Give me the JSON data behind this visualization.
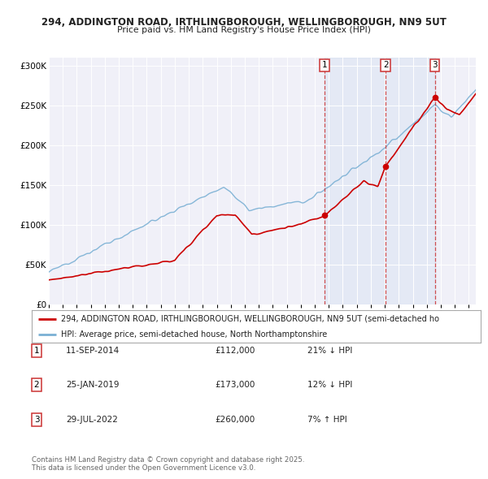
{
  "title_line1": "294, ADDINGTON ROAD, IRTHLINGBOROUGH, WELLINGBOROUGH, NN9 5UT",
  "title_line2": "Price paid vs. HM Land Registry's House Price Index (HPI)",
  "background_color": "#ffffff",
  "plot_bg_color": "#f0f0f8",
  "grid_color": "#ffffff",
  "ylim": [
    0,
    310000
  ],
  "yticks": [
    0,
    50000,
    100000,
    150000,
    200000,
    250000,
    300000
  ],
  "ytick_labels": [
    "£0",
    "£50K",
    "£100K",
    "£150K",
    "£200K",
    "£250K",
    "£300K"
  ],
  "sale_color": "#cc0000",
  "hpi_color": "#7ab0d4",
  "marker_color": "#cc0000",
  "shade_color": "#ddeeff",
  "annotations": [
    {
      "num": 1,
      "date": "11-SEP-2014",
      "price": 112000,
      "year": 2014.7,
      "pct": "21%",
      "dir": "↓"
    },
    {
      "num": 2,
      "date": "25-JAN-2019",
      "price": 173000,
      "year": 2019.07,
      "pct": "12%",
      "dir": "↓"
    },
    {
      "num": 3,
      "date": "29-JUL-2022",
      "price": 260000,
      "year": 2022.57,
      "pct": "7%",
      "dir": "↑"
    }
  ],
  "legend_line1": "294, ADDINGTON ROAD, IRTHLINGBOROUGH, WELLINGBOROUGH, NN9 5UT (semi-detached ho",
  "legend_line2": "HPI: Average price, semi-detached house, North Northamptonshire",
  "footnote": "Contains HM Land Registry data © Crown copyright and database right 2025.\nThis data is licensed under the Open Government Licence v3.0."
}
